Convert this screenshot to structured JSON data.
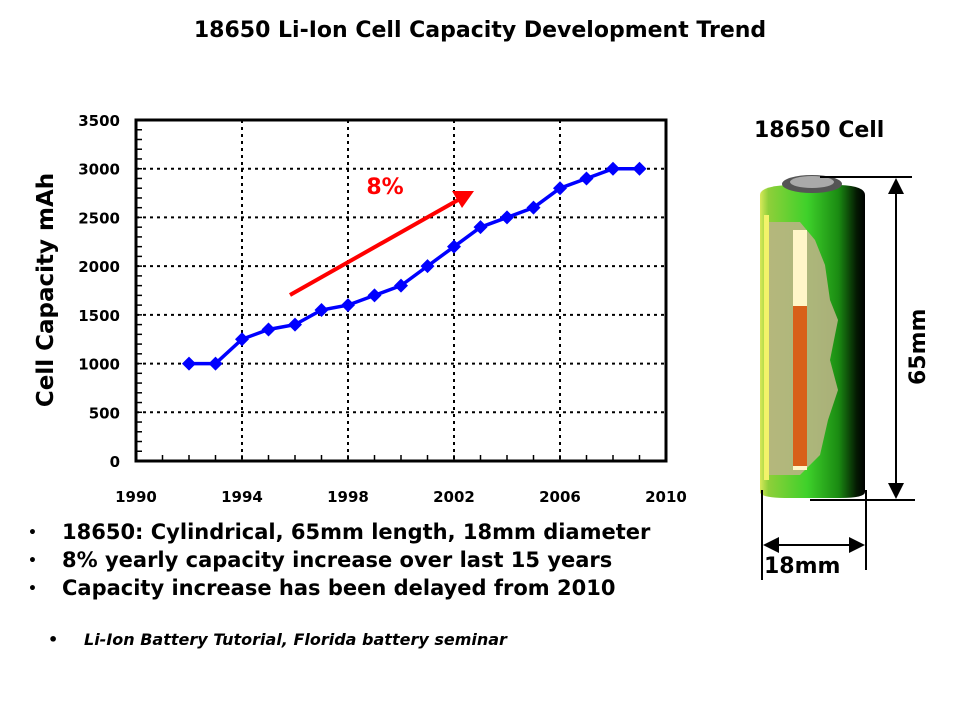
{
  "title": "18650 Li-Ion Cell Capacity Development Trend",
  "chart_data": {
    "type": "line",
    "title": "",
    "xlabel": "",
    "ylabel": "Cell Capacity mAh",
    "xlim": [
      1990,
      2010
    ],
    "ylim": [
      0,
      3500
    ],
    "xticks": [
      "1990",
      "1994",
      "1998",
      "2002",
      "2006",
      "2010"
    ],
    "yticks": [
      "0",
      "500",
      "1000",
      "1500",
      "2000",
      "2500",
      "3000",
      "3500"
    ],
    "grid": true,
    "marker": "diamond",
    "line_color": "#0000ff",
    "x": [
      1992,
      1993,
      1994,
      1995,
      1996,
      1997,
      1998,
      1999,
      2000,
      2001,
      2002,
      2003,
      2004,
      2005,
      2006,
      2007,
      2008,
      2009
    ],
    "values": [
      1000,
      1000,
      1250,
      1350,
      1400,
      1550,
      1600,
      1700,
      1800,
      2000,
      2200,
      2400,
      2500,
      2600,
      2800,
      2900,
      3000,
      3000
    ],
    "annotation": {
      "text": "8%",
      "color": "#ff0000"
    }
  },
  "cell": {
    "label": "18650 Cell",
    "length": "65mm",
    "diameter": "18mm"
  },
  "bullets": [
    "18650: Cylindrical, 65mm length, 18mm diameter",
    "8% yearly capacity increase over last 15 years",
    "Capacity increase has been delayed from 2010"
  ],
  "bullet_symbol": "•",
  "reference": "Li-Ion Battery Tutorial, Florida battery seminar"
}
